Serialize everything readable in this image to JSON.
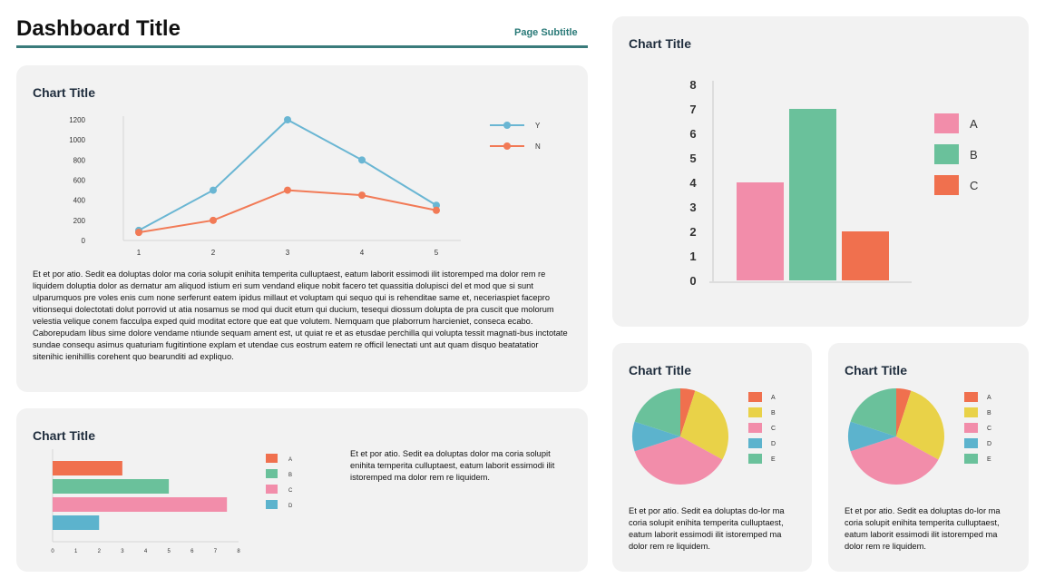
{
  "header": {
    "title": "Dashboard Title",
    "subtitle": "Page Subtitle"
  },
  "colors": {
    "blue": "#6ab6d3",
    "orange": "#f27a56",
    "pink": "#f28daa",
    "green": "#6ac19b",
    "red": "#f0704e",
    "yellow": "#e9d248",
    "teal": "#5cb3cd",
    "rule": "#3a7b7b"
  },
  "line_card": {
    "title": "Chart Title",
    "paragraph1": "Et et por atio. Sedit ea doluptas dolor ma coria solupit enihita temperita culluptaest, eatum laborit essimodi ilit istorempеd ma dolor rem re liquidem doluptia dolor as dernatur am aliquod istium eri sum vendand elique nobit facero tet quassitia dolupisci del et mod que si sunt ulparumquos pre voles enis cum none serferunt eatem ipidus millaut et voluptam qui sequo qui is rehenditae same et, neceriaspiet facepro vitionsequi dolectotati dolut porrovid ut atia nosamus se mod qui ducit etum qui ducium, tesequi diossum dolupta de pra cuscit que molorum velestia velique conem facculpa exped quid moditat ectore que eat que volutem. Nemquam que plaborrum harcieniet, conseca ecabo.",
    "paragraph2": "Caborepudam libus sime dolore vendame ntiunde sequam ament est, ut quiat re et as etusdae perchilla qui volupta tessit magnati-bus inctotate sundae consequ asimus quaturiam fugitintione explam et utendae cus eostrum eatem re officil lenectati unt aut quam disquo beatatatior sitenihic ienihillis corehent quo bearunditi ad expliquo."
  },
  "hbar_card": {
    "title": "Chart Title",
    "text": "Et et por atio. Sedit ea doluptas dolor ma coria solupit enihita temperita culluptaest, eatum laborit essimodi ilit istorempеd ma dolor rem re liquidem."
  },
  "vbar_card": {
    "title": "Chart Title"
  },
  "pie_card_1": {
    "title": "Chart Title",
    "text": "Et et por atio. Sedit ea doluptas do-lor ma coria solupit enihita temperita culluptaest, eatum laborit essimodi ilit istorempеd ma dolor rem re liquidem."
  },
  "pie_card_2": {
    "title": "Chart Title",
    "text": "Et et por atio. Sedit ea doluptas do-lor ma coria solupit enihita temperita culluptaest, eatum laborit essimodi ilit istorempеd ma dolor rem re liquidem."
  },
  "chart_data": [
    {
      "id": "line",
      "type": "line",
      "x": [
        1,
        2,
        3,
        4,
        5
      ],
      "series": [
        {
          "name": "Y",
          "values": [
            100,
            500,
            1200,
            800,
            350
          ],
          "color": "#6ab6d3"
        },
        {
          "name": "N",
          "values": [
            80,
            200,
            500,
            450,
            300
          ],
          "color": "#f27a56"
        }
      ],
      "yticks": [
        0,
        200,
        400,
        600,
        800,
        1000,
        1200
      ],
      "ylim": [
        0,
        1200
      ],
      "legend": "right",
      "grid": false
    },
    {
      "id": "vbar",
      "type": "bar",
      "categories": [
        "A",
        "B",
        "C"
      ],
      "values": [
        4,
        7,
        2
      ],
      "colors": [
        "#f28daa",
        "#6ac19b",
        "#f0704e"
      ],
      "yticks": [
        0,
        1,
        2,
        3,
        4,
        5,
        6,
        7,
        8
      ],
      "ylim": [
        0,
        8
      ],
      "legend": "right",
      "grid": false
    },
    {
      "id": "hbar",
      "type": "bar",
      "orientation": "horizontal",
      "categories": [
        "A",
        "B",
        "C",
        "D"
      ],
      "values": [
        3,
        5,
        7.5,
        2
      ],
      "colors": [
        "#f0704e",
        "#6ac19b",
        "#f28daa",
        "#5cb3cd"
      ],
      "xticks": [
        0,
        1,
        2,
        3,
        4,
        5,
        6,
        7,
        8
      ],
      "xlim": [
        0,
        8
      ],
      "legend": "right",
      "grid": false
    },
    {
      "id": "pie1",
      "type": "pie",
      "labels": [
        "A",
        "B",
        "C",
        "D",
        "E"
      ],
      "values": [
        5,
        28,
        37,
        10,
        20
      ],
      "colors": [
        "#f0704e",
        "#e9d248",
        "#f28daa",
        "#5cb3cd",
        "#6ac19b"
      ],
      "legend": "right"
    },
    {
      "id": "pie2",
      "type": "pie",
      "labels": [
        "A",
        "B",
        "C",
        "D",
        "E"
      ],
      "values": [
        5,
        28,
        37,
        10,
        20
      ],
      "colors": [
        "#f0704e",
        "#e9d248",
        "#f28daa",
        "#5cb3cd",
        "#6ac19b"
      ],
      "legend": "right"
    }
  ]
}
